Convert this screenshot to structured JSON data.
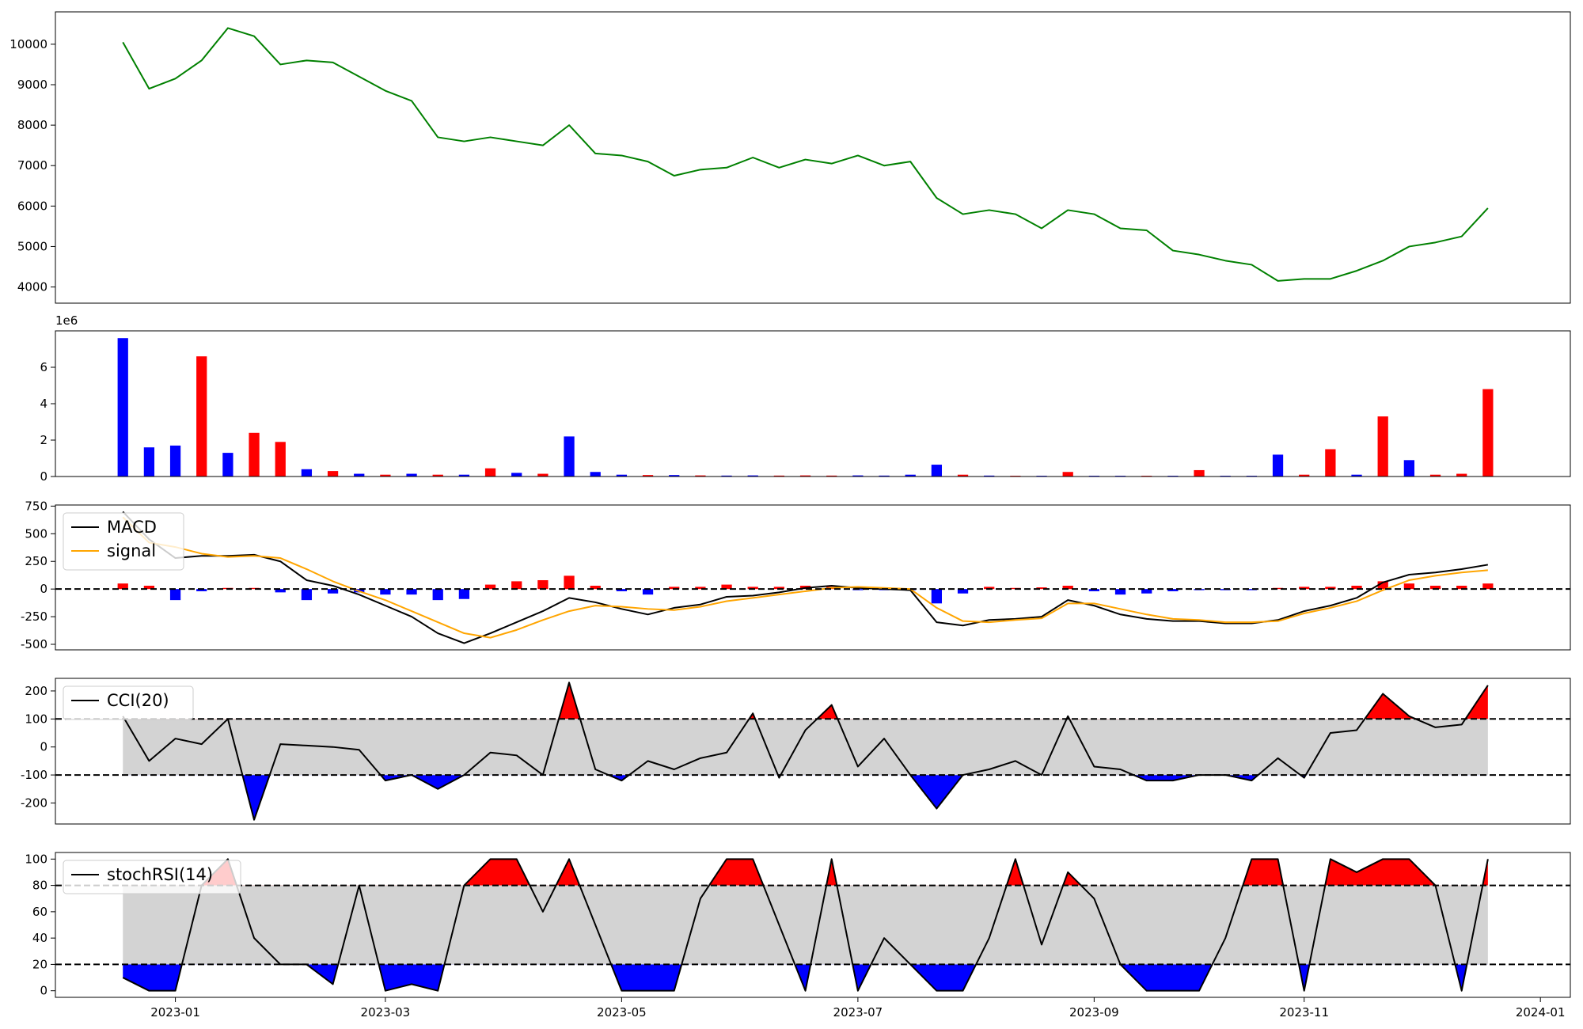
{
  "chart_data": [
    {
      "type": "line",
      "ylim": [
        3600,
        10800
      ],
      "yticks": [
        4000,
        5000,
        6000,
        7000,
        8000,
        9000,
        10000
      ],
      "series": [
        {
          "color": "#008000",
          "values": [
            10050,
            8900,
            9150,
            9600,
            10400,
            10200,
            9500,
            9600,
            9550,
            9200,
            8850,
            8600,
            7700,
            7600,
            7700,
            7600,
            7500,
            8000,
            7300,
            7250,
            7100,
            6750,
            6900,
            6950,
            7200,
            6950,
            7150,
            7050,
            7250,
            7000,
            7100,
            6200,
            5800,
            5900,
            5800,
            5450,
            5900,
            5800,
            5450,
            5400,
            4900,
            4800,
            4650,
            4550,
            4150,
            4200,
            4200,
            4400,
            4650,
            5000,
            5100,
            5250,
            5950,
            null,
            null
          ]
        }
      ]
    },
    {
      "type": "bar",
      "ylim": [
        0,
        8000000
      ],
      "offset_label": "1e6",
      "yticks": [
        0,
        {
          "value": 2000000,
          "label": "2"
        },
        {
          "value": 4000000,
          "label": "4"
        },
        {
          "value": 6000000,
          "label": "6"
        }
      ],
      "values": [
        7600000,
        1600000,
        1700000,
        6600000,
        1300000,
        2400000,
        1900000,
        400000,
        300000,
        150000,
        100000,
        150000,
        100000,
        100000,
        450000,
        200000,
        150000,
        2200000,
        250000,
        100000,
        80000,
        80000,
        60000,
        50000,
        60000,
        50000,
        60000,
        50000,
        60000,
        50000,
        100000,
        650000,
        100000,
        50000,
        40000,
        40000,
        250000,
        40000,
        40000,
        40000,
        40000,
        350000,
        40000,
        40000,
        1200000,
        100000,
        1500000,
        100000,
        3300000,
        900000,
        100000,
        150000,
        4800000,
        null,
        null
      ],
      "colors": [
        "blue",
        "blue",
        "blue",
        "red",
        "blue",
        "red",
        "red",
        "blue",
        "red",
        "blue",
        "red",
        "blue",
        "red",
        "blue",
        "red",
        "blue",
        "red",
        "blue",
        "blue",
        "blue",
        "red",
        "blue",
        "red",
        "blue",
        "blue",
        "red",
        "red",
        "red",
        "blue",
        "blue",
        "blue",
        "blue",
        "red",
        "blue",
        "red",
        "blue",
        "red",
        "blue",
        "blue",
        "red",
        "blue",
        "red",
        "blue",
        "blue",
        "blue",
        "red",
        "red",
        "blue",
        "red",
        "blue",
        "red",
        "red",
        "red",
        null,
        null
      ]
    },
    {
      "type": "line",
      "ylim": [
        -550,
        760
      ],
      "yticks": [
        -500,
        -250,
        0,
        250,
        500,
        750
      ],
      "hlines": [
        0
      ],
      "legend": "upper left",
      "series": [
        {
          "name": "MACD",
          "color": "#000000",
          "values": [
            700,
            450,
            280,
            300,
            300,
            310,
            250,
            80,
            30,
            -50,
            -150,
            -250,
            -400,
            -490,
            -400,
            -300,
            -200,
            -80,
            -120,
            -180,
            -230,
            -170,
            -140,
            -70,
            -60,
            -30,
            10,
            30,
            10,
            0,
            -10,
            -300,
            -330,
            -280,
            -270,
            -250,
            -100,
            -150,
            -230,
            -270,
            -290,
            -290,
            -310,
            -310,
            -280,
            -200,
            -150,
            -80,
            60,
            130,
            150,
            180,
            220,
            null,
            null
          ]
        },
        {
          "name": "signal",
          "color": "#ffa500",
          "values": [
            650,
            420,
            380,
            320,
            290,
            300,
            280,
            180,
            70,
            -20,
            -100,
            -200,
            -300,
            -400,
            -440,
            -370,
            -280,
            -200,
            -150,
            -160,
            -180,
            -190,
            -160,
            -110,
            -80,
            -50,
            -20,
            10,
            20,
            10,
            0,
            -170,
            -290,
            -300,
            -280,
            -265,
            -130,
            -130,
            -180,
            -230,
            -270,
            -280,
            -300,
            -300,
            -290,
            -220,
            -170,
            -110,
            -10,
            80,
            120,
            150,
            170,
            null,
            null
          ]
        }
      ],
      "histogram": {
        "up_color": "#ff0000",
        "down_color": "#0000ff",
        "values": [
          50,
          30,
          -100,
          -20,
          10,
          10,
          -30,
          -100,
          -40,
          -30,
          -50,
          -50,
          -100,
          -90,
          40,
          70,
          80,
          120,
          30,
          -20,
          -50,
          20,
          20,
          40,
          20,
          20,
          30,
          20,
          -10,
          -10,
          -10,
          -130,
          -40,
          20,
          10,
          15,
          30,
          -20,
          -50,
          -40,
          -20,
          -10,
          -10,
          -10,
          10,
          20,
          20,
          30,
          70,
          50,
          30,
          30,
          50,
          null,
          null
        ]
      }
    },
    {
      "type": "line",
      "ylim": [
        -275,
        245
      ],
      "yticks": [
        -200,
        -100,
        0,
        100,
        200
      ],
      "hlines": [
        100,
        -100
      ],
      "legend": "upper left",
      "band_color": "#d3d3d3",
      "above_color": "#ff0000",
      "below_color": "#0000ff",
      "series": [
        {
          "name": "CCI(20)",
          "color": "#000000",
          "values": [
            110,
            -50,
            30,
            10,
            100,
            -260,
            10,
            5,
            0,
            -10,
            -120,
            -100,
            -150,
            -100,
            -20,
            -30,
            -100,
            230,
            -80,
            -120,
            -50,
            -80,
            -40,
            -20,
            120,
            -110,
            60,
            150,
            -70,
            30,
            -100,
            -220,
            -100,
            -80,
            -50,
            -100,
            110,
            -70,
            -80,
            -120,
            -120,
            -100,
            -100,
            -120,
            -40,
            -110,
            50,
            60,
            190,
            110,
            70,
            80,
            220,
            null,
            null
          ]
        }
      ]
    },
    {
      "type": "line",
      "ylim": [
        -5,
        105
      ],
      "yticks": [
        0,
        20,
        40,
        60,
        80,
        100
      ],
      "hlines": [
        80,
        20
      ],
      "legend": "upper left",
      "band_color": "#d3d3d3",
      "above_color": "#ff0000",
      "below_color": "#0000ff",
      "series": [
        {
          "name": "stochRSI(14)",
          "color": "#000000",
          "values": [
            10,
            0,
            0,
            80,
            100,
            40,
            20,
            20,
            5,
            80,
            0,
            5,
            0,
            80,
            100,
            100,
            60,
            100,
            50,
            0,
            0,
            0,
            70,
            100,
            100,
            50,
            0,
            100,
            0,
            40,
            20,
            0,
            0,
            40,
            100,
            35,
            90,
            70,
            20,
            0,
            0,
            0,
            40,
            100,
            100,
            0,
            100,
            90,
            100,
            100,
            80,
            0,
            100,
            null,
            null
          ]
        }
      ],
      "categories": [
        null,
        null,
        "2023-01",
        null,
        null,
        null,
        null,
        null,
        null,
        null,
        "2023-03",
        null,
        null,
        null,
        null,
        null,
        null,
        null,
        null,
        "2023-05",
        null,
        null,
        null,
        null,
        null,
        null,
        null,
        null,
        "2023-07",
        null,
        null,
        null,
        null,
        null,
        null,
        null,
        null,
        "2023-09",
        null,
        null,
        null,
        null,
        null,
        null,
        null,
        "2023-11",
        null,
        null,
        null,
        null,
        null,
        null,
        null,
        null,
        "2024-01"
      ]
    }
  ]
}
